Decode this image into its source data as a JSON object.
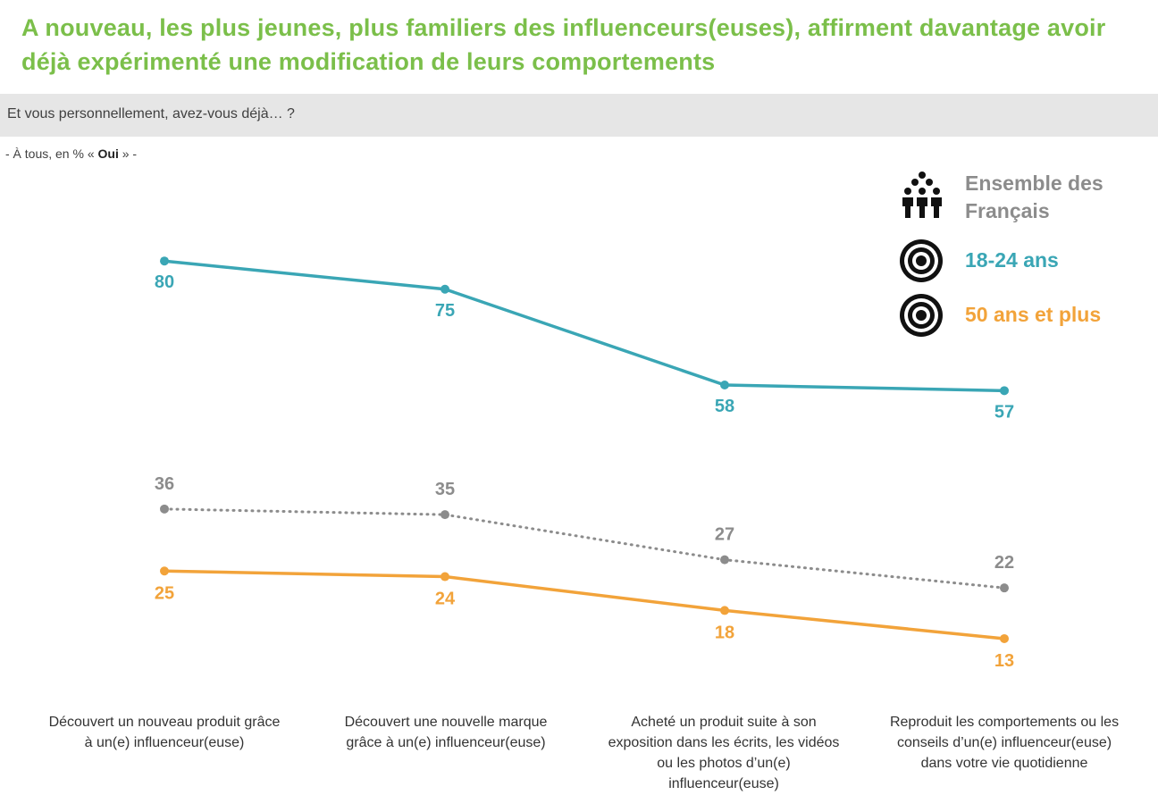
{
  "title": "A nouveau, les plus jeunes, plus familiers des influenceurs(euses), affirment davantage avoir déjà expérimenté une modification de leurs comportements",
  "question": "Et vous personnellement, avez-vous déjà… ?",
  "base_note": {
    "prefix": "- À tous, en % « ",
    "bold": "Oui",
    "suffix": " » -"
  },
  "legend": [
    {
      "label_line1": "Ensemble des",
      "label_line2": "Français",
      "icon": "people-group-icon",
      "color": "#8c8c8c"
    },
    {
      "label_line1": "18-24 ans",
      "icon": "target-icon",
      "color": "#3aa6b5"
    },
    {
      "label_line1": "50 ans et plus",
      "icon": "target-icon",
      "color": "#f2a33a"
    }
  ],
  "colors": {
    "title": "#7bbf4a",
    "young": "#3aa6b5",
    "all": "#8c8c8c",
    "old": "#f2a33a"
  },
  "chart_data": {
    "type": "line",
    "title": "",
    "xlabel": "",
    "ylabel": "",
    "grid": false,
    "legend_position": "top-right",
    "categories": [
      "Découvert un nouveau produit grâce à un(e) influenceur(euse)",
      "Découvert une nouvelle marque grâce à un(e) influenceur(euse)",
      "Acheté un produit suite à son exposition dans les écrits, les vidéos ou les photos d’un(e) influenceur(euse)",
      "Reproduit les comportements ou les conseils d’un(e) influenceur(euse) dans votre vie quotidienne"
    ],
    "category_lines": [
      [
        "Découvert un nouveau produit grâce",
        "à un(e) influenceur(euse)"
      ],
      [
        "Découvert une nouvelle marque",
        "grâce à un(e) influenceur(euse)"
      ],
      [
        "Acheté un produit suite à son",
        "exposition dans les écrits, les vidéos",
        "ou les photos d’un(e)",
        "influenceur(euse)"
      ],
      [
        "Reproduit les comportements ou les",
        "conseils d’un(e) influenceur(euse)",
        "dans votre vie quotidienne"
      ]
    ],
    "series": [
      {
        "name": "18-24 ans",
        "key": "young",
        "values": [
          80,
          75,
          58,
          57
        ],
        "style": "solid"
      },
      {
        "name": "Ensemble des Français",
        "key": "all",
        "values": [
          36,
          35,
          27,
          22
        ],
        "style": "dotted"
      },
      {
        "name": "50 ans et plus",
        "key": "old",
        "values": [
          25,
          24,
          18,
          13
        ],
        "style": "solid"
      }
    ]
  }
}
